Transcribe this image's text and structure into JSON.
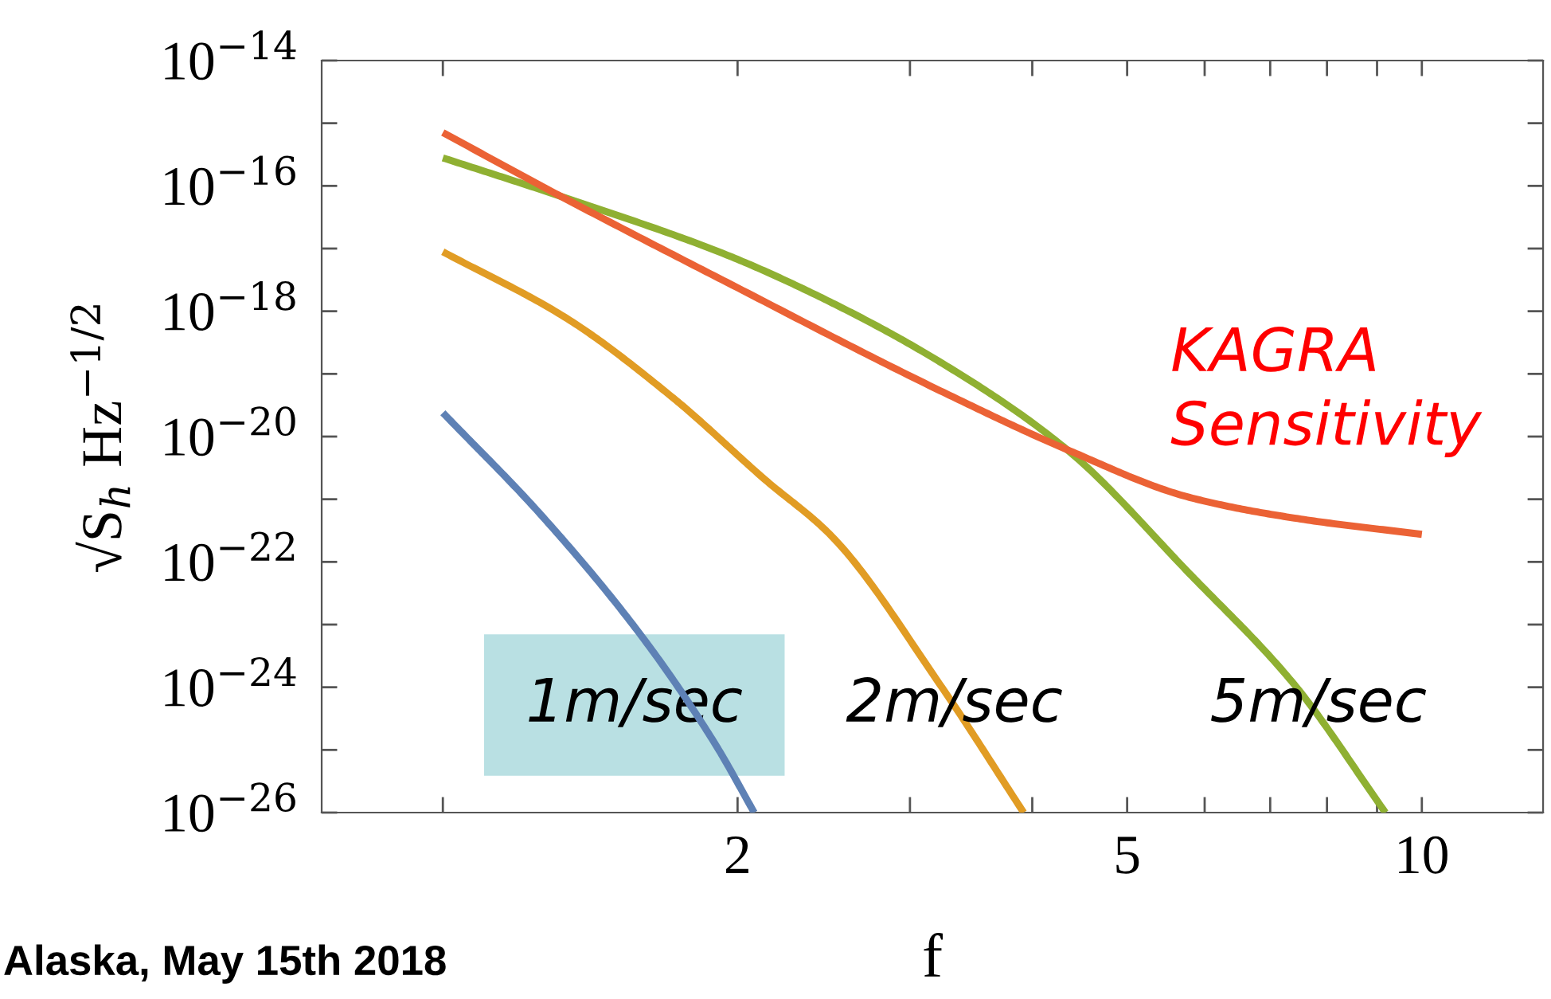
{
  "chart_data": {
    "type": "line",
    "xlabel": "f",
    "ylabel": "√S$_{h}$ Hz$^{−1/2}$",
    "log": "xy",
    "grid": false,
    "legend": false,
    "marker": "none",
    "line_style": "solid",
    "xlim": [
      0.752,
      13.3
    ],
    "xticks": [
      {
        "value": 1,
        "label": null
      },
      2,
      {
        "value": 3,
        "label": null
      },
      {
        "value": 4,
        "label": null
      },
      5,
      {
        "value": 6,
        "label": null
      },
      {
        "value": 7,
        "label": null
      },
      {
        "value": 8,
        "label": null
      },
      {
        "value": 9,
        "label": null
      },
      10
    ],
    "ylim": [
      1e-26,
      1e-14
    ],
    "yticks": [
      {
        "value": 1e-14,
        "label": "10$^{−14}$"
      },
      {
        "value": 1e-15,
        "label": null
      },
      {
        "value": 1e-16,
        "label": "10$^{−16}$"
      },
      {
        "value": 1e-17,
        "label": null
      },
      {
        "value": 1e-18,
        "label": "10$^{−18}$"
      },
      {
        "value": 1e-19,
        "label": null
      },
      {
        "value": 1e-20,
        "label": "10$^{−20}$"
      },
      {
        "value": 1e-21,
        "label": null
      },
      {
        "value": 1e-22,
        "label": "10$^{−22}$"
      },
      {
        "value": 1e-23,
        "label": null
      },
      {
        "value": 1e-24,
        "label": "10$^{−24}$"
      },
      {
        "value": 1e-25,
        "label": null
      },
      {
        "value": 1e-26,
        "label": "10$^{−26}$"
      }
    ],
    "series": [
      {
        "color": "#5e81b5",
        "x": [
          1,
          1.26,
          1.6,
          1.9,
          2.08
        ],
        "values": [
          2.4e-20,
          5.6e-22,
          6.2e-24,
          1.2e-25,
          1e-26
        ]
      },
      {
        "color": "#e19c24",
        "x": [
          1,
          1.34,
          1.72,
          2.13,
          2.5,
          3.22,
          3.92
        ],
        "values": [
          8.9e-18,
          7.6e-19,
          4.1e-20,
          2.1e-21,
          2.5e-22,
          1.1e-24,
          1e-26
        ]
      },
      {
        "color": "#8fb032",
        "x": [
          1,
          1.32,
          1.95,
          2.5,
          3.22,
          4.34,
          5.79,
          7.41,
          9.18
        ],
        "values": [
          2.8e-16,
          6.8e-17,
          7.9e-18,
          1.35e-18,
          1.55e-19,
          6.2e-21,
          6.5e-23,
          1.1e-24,
          1e-26
        ]
      },
      {
        "color": "#eb6235",
        "x": [
          1,
          1.32,
          1.95,
          3.22,
          4.34,
          5.79,
          7.41,
          10
        ],
        "values": [
          7.1e-16,
          6.8e-17,
          2.9e-18,
          5.4e-20,
          6.2e-21,
          1.07e-21,
          5e-22,
          2.75e-22
        ]
      }
    ],
    "annotations": [
      "1m/sec",
      "2m/sec",
      "5m/sec",
      "KAGRA\nSensitivity",
      "Alaska, May 15th 2018"
    ]
  }
}
